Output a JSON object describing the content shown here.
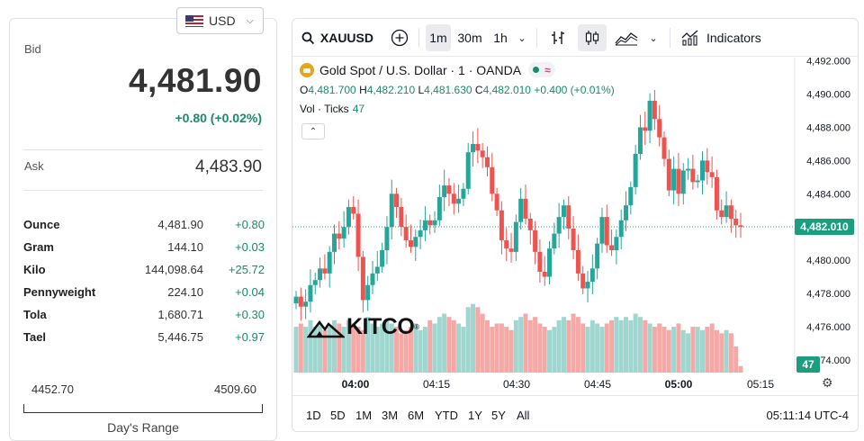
{
  "currency": {
    "label": "USD"
  },
  "bid": {
    "label": "Bid",
    "value": "4,481.90",
    "change": "+0.80 (+0.02%)"
  },
  "ask": {
    "label": "Ask",
    "value": "4,483.90"
  },
  "units": [
    {
      "name": "Ounce",
      "price": "4,481.90",
      "change": "+0.80"
    },
    {
      "name": "Gram",
      "price": "144.10",
      "change": "+0.03"
    },
    {
      "name": "Kilo",
      "price": "144,098.64",
      "change": "+25.72"
    },
    {
      "name": "Pennyweight",
      "price": "224.10",
      "change": "+0.04"
    },
    {
      "name": "Tola",
      "price": "1,680.71",
      "change": "+0.30"
    },
    {
      "name": "Tael",
      "price": "5,446.75",
      "change": "+0.97"
    }
  ],
  "range": {
    "low": "4452.70",
    "high": "4509.60",
    "label": "Day's Range"
  },
  "toolbar": {
    "symbol": "XAUUSD",
    "intervals": [
      "1m",
      "30m",
      "1h"
    ],
    "active_interval": "1m",
    "indicators_label": "Indicators"
  },
  "legend": {
    "title": "Gold Spot / U.S. Dollar · 1 · OANDA",
    "o_label": "O",
    "o": "4,481.700",
    "h_label": "H",
    "h": "4,482.210",
    "l_label": "L",
    "l": "4,481.630",
    "c_label": "C",
    "c": "4,482.010",
    "change": "+0.400 (+0.01%)",
    "vol_label": "Vol · Ticks",
    "vol_value": "47"
  },
  "logo": {
    "text": "KITCO"
  },
  "current_price_label": "4,482.010",
  "volume_label": "47",
  "ranges": [
    "1D",
    "5D",
    "1M",
    "3M",
    "6M",
    "YTD",
    "1Y",
    "5Y",
    "All"
  ],
  "clock": "05:11:14 UTC-4",
  "colors": {
    "up": "#26a69a",
    "down": "#ef5350",
    "accent": "#1a9e7e"
  },
  "chart_data": {
    "type": "candlestick",
    "y_ticks": [
      "4,492.000",
      "4,490.000",
      "4,488.000",
      "4,486.000",
      "4,484.000",
      "4,480.000",
      "4,478.000",
      "4,476.000",
      "4,474.000"
    ],
    "x_ticks": [
      "04:00",
      "04:15",
      "04:30",
      "04:45",
      "05:00",
      "05:15"
    ],
    "ylim": [
      4473.5,
      4492.2
    ],
    "closes": [
      4477.8,
      4477.2,
      4477.5,
      4478.5,
      4478.8,
      4479.5,
      4479.2,
      4480.5,
      4481.6,
      4481.3,
      4482.0,
      4483.2,
      4482.8,
      4480.2,
      4477.6,
      4478.5,
      4479.2,
      4479.6,
      4480.6,
      4482.0,
      4484.0,
      4483.2,
      4482.0,
      4481.2,
      4480.8,
      4481.4,
      4481.8,
      4482.4,
      4482.1,
      4482.4,
      4483.8,
      4484.5,
      4484.0,
      4483.4,
      4483.7,
      4484.3,
      4486.5,
      4487.0,
      4486.6,
      4486.2,
      4485.6,
      4484.0,
      4483.0,
      4481.2,
      4480.7,
      4480.5,
      4482.3,
      4483.7,
      4482.5,
      4481.8,
      4480.5,
      4479.3,
      4479.0,
      4480.7,
      4481.6,
      4482.6,
      4483.3,
      4481.9,
      4480.6,
      4479.2,
      4478.3,
      4478.7,
      4479.5,
      4481.0,
      4482.6,
      4480.9,
      4480.6,
      4481.4,
      4482.4,
      4483.3,
      4484.4,
      4486.4,
      4488.0,
      4487.8,
      4489.6,
      4488.5,
      4487.4,
      4486.1,
      4484.2,
      4485.5,
      4484.0,
      4485.4,
      4485.5,
      4484.7,
      4484.8,
      4486.0,
      4485.3,
      4485.0,
      4483.0,
      4482.6,
      4483.3,
      4482.5,
      4482.1,
      4482.0
    ],
    "volumes": [
      14,
      15,
      14,
      16,
      14,
      15,
      13,
      14,
      16,
      15,
      14,
      16,
      15,
      14,
      13,
      17,
      15,
      14,
      15,
      16,
      15,
      14,
      12,
      13,
      14,
      15,
      13,
      14,
      16,
      15,
      17,
      18,
      17,
      16,
      15,
      14,
      20,
      21,
      20,
      18,
      16,
      14,
      15,
      15,
      14,
      13,
      16,
      17,
      18,
      16,
      17,
      15,
      14,
      13,
      14,
      16,
      17,
      16,
      18,
      17,
      15,
      14,
      16,
      15,
      14,
      15,
      16,
      17,
      16,
      17,
      16,
      18,
      17,
      16,
      15,
      14,
      15,
      14,
      13,
      14,
      15,
      13,
      12,
      14,
      14,
      13,
      14,
      15,
      13,
      12,
      13,
      12,
      8,
      2
    ]
  }
}
